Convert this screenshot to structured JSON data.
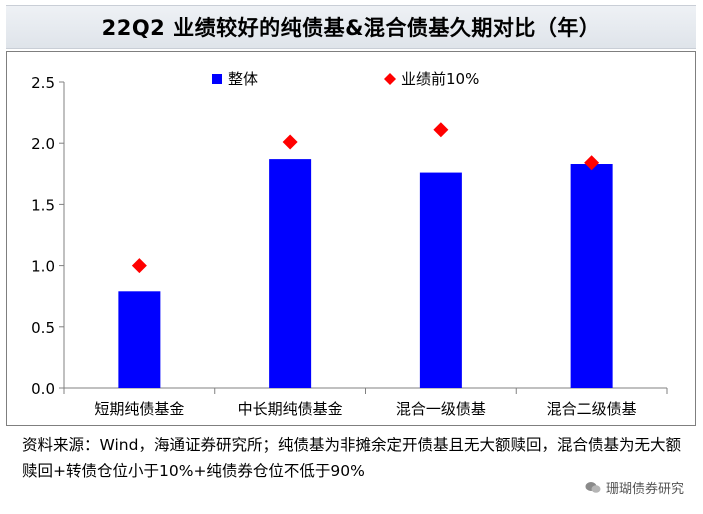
{
  "chart_data": {
    "type": "bar",
    "title": "22Q2 业绩较好的纯债基&混合债基久期对比（年）",
    "categories": [
      "短期纯债基金",
      "中长期纯债基金",
      "混合一级债基",
      "混合二级债基"
    ],
    "series": [
      {
        "name": "整体",
        "kind": "bar",
        "color": "#0000ff",
        "values": [
          0.79,
          1.87,
          1.76,
          1.83
        ]
      },
      {
        "name": "业绩前10%",
        "kind": "scatter",
        "marker": "diamond",
        "color": "#ff0000",
        "values": [
          1.0,
          2.01,
          2.11,
          1.84
        ]
      }
    ],
    "ylim": [
      0,
      2.5
    ],
    "yticks": [
      "0.0",
      "0.5",
      "1.0",
      "1.5",
      "2.0",
      "2.5"
    ],
    "xlabel": "",
    "ylabel": "",
    "grid": false,
    "legend": "top"
  },
  "source_note": "资料来源：Wind，海通证券研究所；纯债基为非摊余定开债基且无大额赎回，混合债基为无大额赎回+转债仓位小于10%+纯债券仓位不低于90%",
  "watermark": "珊瑚债券研究"
}
